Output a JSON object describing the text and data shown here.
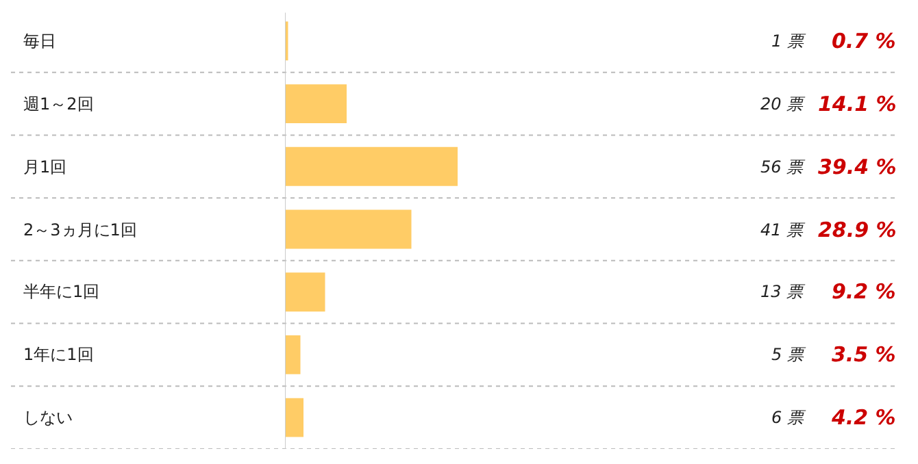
{
  "chart_data": {
    "type": "bar",
    "orientation": "horizontal",
    "categories": [
      "毎日",
      "週1～2回",
      "月1回",
      "2～3ヵ月に1回",
      "半年に1回",
      "1年に1回",
      "しない"
    ],
    "values": [
      1,
      20,
      56,
      41,
      13,
      5,
      6
    ],
    "color": "#ffcc66",
    "value_labels": [
      "1 票",
      "20 票",
      "56 票",
      "41 票",
      "13 票",
      "5 票",
      "6 票"
    ],
    "annotations": [
      "0.7 %",
      "14.1 %",
      "39.4 %",
      "28.9 %",
      "9.2 %",
      "3.5 %",
      "4.2 %"
    ]
  }
}
